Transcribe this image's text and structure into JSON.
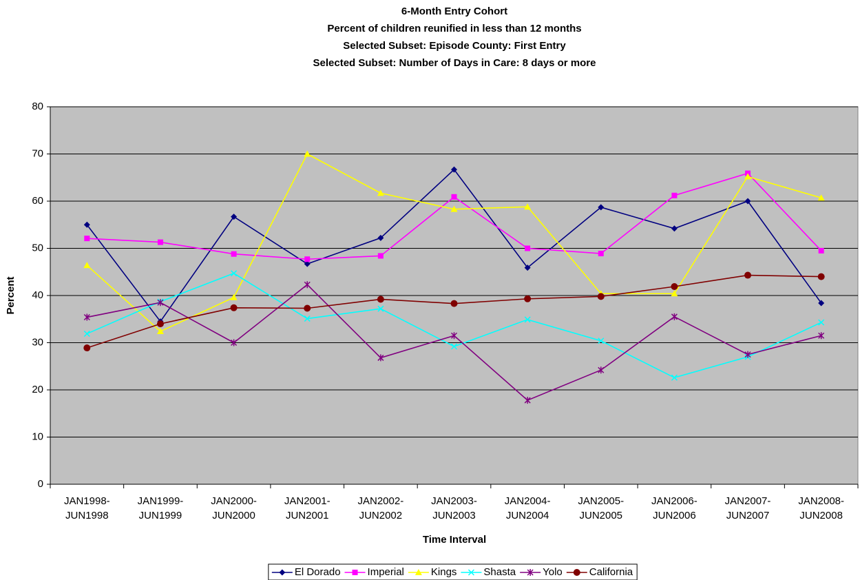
{
  "chart_data": {
    "type": "line",
    "title": "6-Month Entry Cohort",
    "subtitle": [
      "Percent of children reunified in less than 12 months",
      "Selected Subset: Episode County: First Entry",
      "Selected Subset: Number of Days in Care: 8 days or more"
    ],
    "x_label": "Time Interval",
    "y_label": "Percent",
    "categories": [
      "JAN1998-JUN1998",
      "JAN1999-JUN1999",
      "JAN2000-JUN2000",
      "JAN2001-JUN2001",
      "JAN2002-JUN2002",
      "JAN2003-JUN2003",
      "JAN2004-JUN2004",
      "JAN2005-JUN2005",
      "JAN2006-JUN2006",
      "JAN2007-JUN2007",
      "JAN2008-JUN2008"
    ],
    "series": [
      {
        "name": "El Dorado",
        "color": "#000080",
        "marker": "diamond",
        "values": [
          55,
          34.5,
          56.7,
          46.7,
          52.2,
          66.7,
          45.9,
          58.7,
          54.2,
          60,
          38.4
        ]
      },
      {
        "name": "Imperial",
        "color": "#ff00ff",
        "marker": "square",
        "values": [
          52.1,
          51.3,
          48.8,
          47.7,
          48.4,
          60.9,
          50,
          48.9,
          61.2,
          65.9,
          49.5
        ]
      },
      {
        "name": "Kings",
        "color": "#ffff00",
        "marker": "triangle",
        "values": [
          46.4,
          32.4,
          39.6,
          70,
          61.7,
          58.3,
          58.8,
          40.4,
          40.4,
          65.2,
          60.7
        ]
      },
      {
        "name": "Shasta",
        "color": "#00ffff",
        "marker": "x",
        "values": [
          31.9,
          38.7,
          44.7,
          35.1,
          37.2,
          29.2,
          34.9,
          30.4,
          22.6,
          27,
          34.3
        ]
      },
      {
        "name": "Yolo",
        "color": "#800080",
        "marker": "asterisk",
        "values": [
          35.4,
          38.5,
          30,
          42.3,
          26.8,
          31.5,
          17.8,
          24.2,
          35.5,
          27.5,
          31.5
        ]
      },
      {
        "name": "California",
        "color": "#800000",
        "marker": "circle",
        "values": [
          28.9,
          34,
          37.4,
          37.3,
          39.2,
          38.3,
          39.3,
          39.8,
          41.9,
          44.3,
          44
        ]
      }
    ],
    "ylim": [
      0,
      80
    ],
    "yticks": [
      0,
      10,
      20,
      30,
      40,
      50,
      60,
      70,
      80
    ],
    "grid": true,
    "plot_background": "#c0c0c0",
    "legend": "bottom"
  }
}
